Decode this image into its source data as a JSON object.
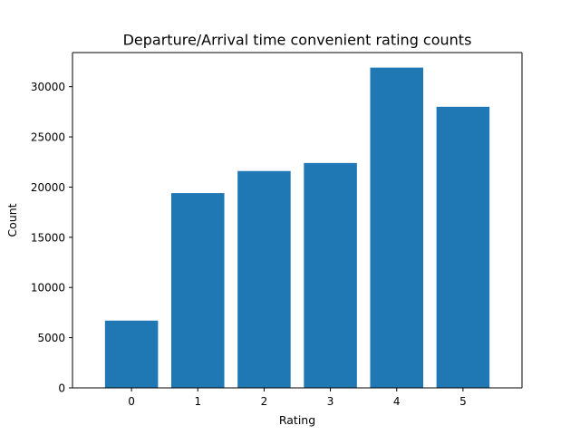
{
  "chart_data": {
    "type": "bar",
    "title": "Departure/Arrival time convenient rating counts",
    "xlabel": "Rating",
    "ylabel": "Count",
    "categories": [
      "0",
      "1",
      "2",
      "3",
      "4",
      "5"
    ],
    "values": [
      6700,
      19400,
      21600,
      22400,
      31900,
      28000
    ],
    "ylim": [
      0,
      33400
    ],
    "yticks": [
      0,
      5000,
      10000,
      15000,
      20000,
      25000,
      30000
    ],
    "grid": false,
    "bar_color": "#1f77b4"
  }
}
